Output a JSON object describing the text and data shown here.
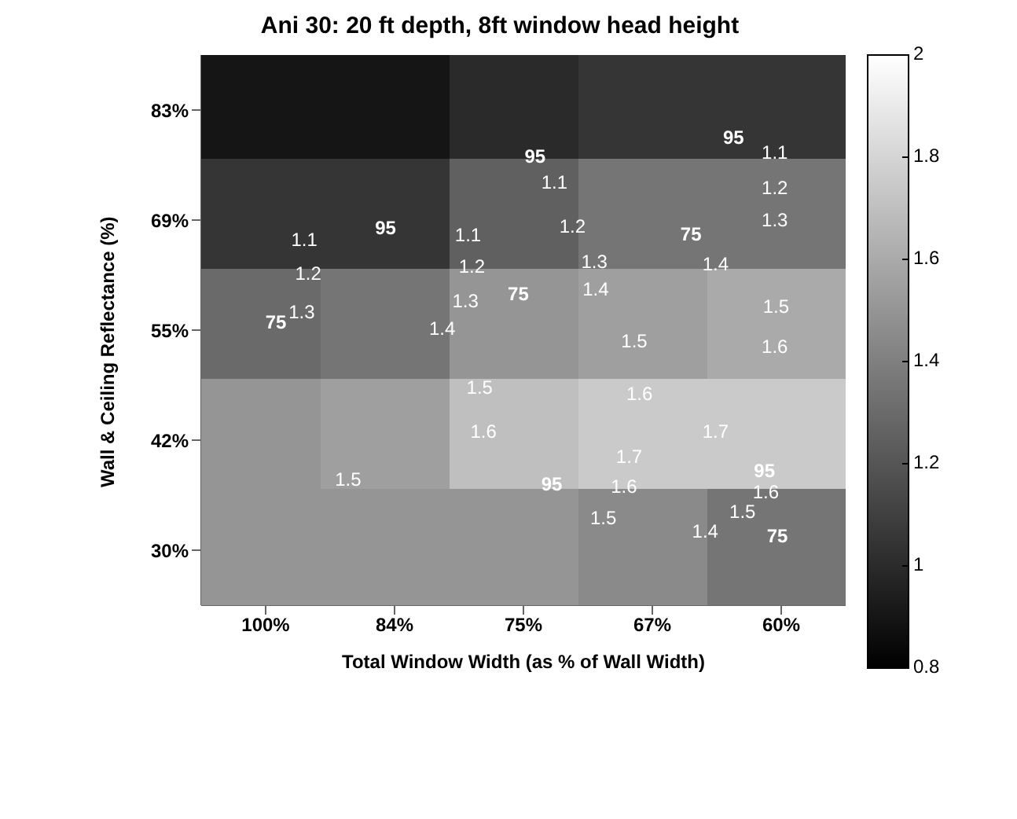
{
  "chart_data": {
    "type": "heatmap",
    "title": "Ani 30: 20 ft depth, 8ft window head height",
    "xlabel": "Total Window Width (as % of Wall Width)",
    "ylabel": "Wall & Ceiling Reflectance (%)",
    "categories": [
      "100%",
      "84%",
      "75%",
      "67%",
      "60%"
    ],
    "y_categories": [
      "83%",
      "69%",
      "55%",
      "42%",
      "30%"
    ],
    "cells": [
      [
        0.9,
        0.9,
        1.0,
        1.05,
        1.05
      ],
      [
        1.05,
        1.05,
        1.25,
        1.35,
        1.35
      ],
      [
        1.3,
        1.35,
        1.5,
        1.55,
        1.6
      ],
      [
        1.5,
        1.55,
        1.7,
        1.75,
        1.75
      ],
      [
        1.5,
        1.5,
        1.5,
        1.45,
        1.35
      ]
    ],
    "clim": [
      0.8,
      2
    ],
    "cticks": [
      0.8,
      1,
      1.2,
      1.4,
      1.6,
      1.8,
      2
    ],
    "annotations": [
      "95",
      "1.1",
      "1.2",
      "1.3",
      "75",
      "95",
      "95",
      "1.1",
      "1.1",
      "1.2",
      "1.2",
      "1.3",
      "75",
      "1.1",
      "1.2",
      "1.3",
      "1.4",
      "1.3",
      "75",
      "1.4",
      "1.5",
      "1.4",
      "1.5",
      "1.6",
      "1.5",
      "1.6",
      "1.7",
      "1.6",
      "1.7",
      "1.5",
      "95",
      "1.6",
      "95",
      "1.6",
      "1.5",
      "1.5",
      "1.4",
      "75"
    ]
  }
}
